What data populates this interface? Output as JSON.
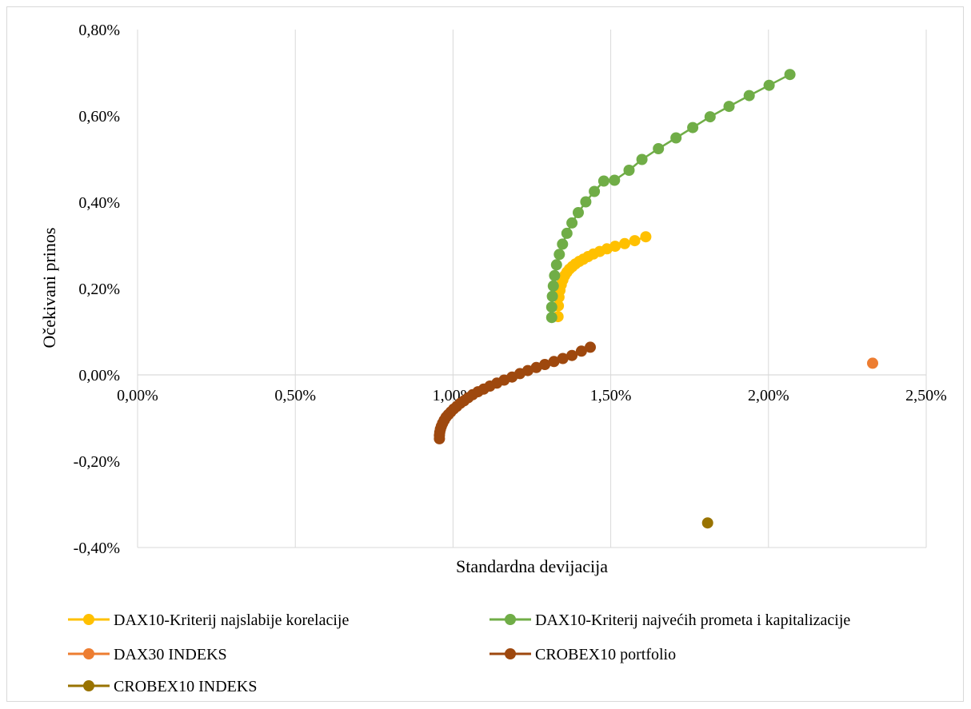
{
  "chart_data": {
    "type": "scatter",
    "title": "",
    "xlabel": "Standardna devijacija",
    "ylabel": "Očekivani prinos",
    "xlim": [
      0,
      0.025
    ],
    "ylim": [
      -0.004,
      0.008
    ],
    "grid": "vertical",
    "legend_position": "bottom",
    "x_ticks": [
      {
        "value": 0.0,
        "label": "0,00%"
      },
      {
        "value": 0.005,
        "label": "0,50%"
      },
      {
        "value": 0.01,
        "label": "1,00%"
      },
      {
        "value": 0.015,
        "label": "1,50%"
      },
      {
        "value": 0.02,
        "label": "2,00%"
      },
      {
        "value": 0.025,
        "label": "2,50%"
      }
    ],
    "y_ticks": [
      {
        "value": 0.008,
        "label": "0,80%"
      },
      {
        "value": 0.006,
        "label": "0,60%"
      },
      {
        "value": 0.004,
        "label": "0,40%"
      },
      {
        "value": 0.002,
        "label": "0,20%"
      },
      {
        "value": 0.0,
        "label": "0,00%"
      },
      {
        "value": -0.002,
        "label": "-0,20%"
      },
      {
        "value": -0.004,
        "label": "-0,40%"
      }
    ],
    "series": [
      {
        "name": "DAX10-Kriterij najslabije korelacije",
        "color": "#FFC000",
        "line": true,
        "points": [
          [
            0.01333,
            0.00135
          ],
          [
            0.01334,
            0.0016
          ],
          [
            0.01336,
            0.0018
          ],
          [
            0.01339,
            0.00196
          ],
          [
            0.01343,
            0.00209
          ],
          [
            0.01348,
            0.0022
          ],
          [
            0.01354,
            0.0023
          ],
          [
            0.01361,
            0.00238
          ],
          [
            0.01369,
            0.00245
          ],
          [
            0.01378,
            0.00251
          ],
          [
            0.01388,
            0.00257
          ],
          [
            0.014,
            0.00263
          ],
          [
            0.01413,
            0.00268
          ],
          [
            0.01428,
            0.00274
          ],
          [
            0.01445,
            0.0028
          ],
          [
            0.01465,
            0.00286
          ],
          [
            0.01488,
            0.00292
          ],
          [
            0.01514,
            0.00298
          ],
          [
            0.01544,
            0.00304
          ],
          [
            0.01576,
            0.00311
          ],
          [
            0.01611,
            0.0032
          ]
        ]
      },
      {
        "name": "DAX10-Kriterij najvećih prometa i kapitalizacije",
        "color": "#70AD47",
        "line": true,
        "points": [
          [
            0.01313,
            0.00133
          ],
          [
            0.01313,
            0.00157
          ],
          [
            0.01315,
            0.00182
          ],
          [
            0.01318,
            0.00206
          ],
          [
            0.01322,
            0.0023
          ],
          [
            0.01328,
            0.00255
          ],
          [
            0.01337,
            0.00279
          ],
          [
            0.01347,
            0.00303
          ],
          [
            0.01361,
            0.00328
          ],
          [
            0.01377,
            0.00352
          ],
          [
            0.01397,
            0.00376
          ],
          [
            0.01421,
            0.00401
          ],
          [
            0.01448,
            0.00425
          ],
          [
            0.01478,
            0.00449
          ],
          [
            0.01512,
            0.00451
          ],
          [
            0.01558,
            0.00474
          ],
          [
            0.01599,
            0.00499
          ],
          [
            0.01651,
            0.00524
          ],
          [
            0.01707,
            0.00549
          ],
          [
            0.0176,
            0.00573
          ],
          [
            0.01815,
            0.00598
          ],
          [
            0.01875,
            0.00622
          ],
          [
            0.01939,
            0.00647
          ],
          [
            0.02002,
            0.00671
          ],
          [
            0.02068,
            0.00696
          ]
        ]
      },
      {
        "name": "DAX30 INDEKS",
        "color": "#ED7D31",
        "line": false,
        "points": [
          [
            0.0233,
            0.00027
          ]
        ]
      },
      {
        "name": "CROBEX10 portfolio",
        "color": "#9E480E",
        "line": true,
        "points": [
          [
            0.00957,
            -0.00148
          ],
          [
            0.00957,
            -0.0014
          ],
          [
            0.00958,
            -0.00133
          ],
          [
            0.0096,
            -0.00126
          ],
          [
            0.00963,
            -0.00119
          ],
          [
            0.00967,
            -0.00112
          ],
          [
            0.00972,
            -0.00105
          ],
          [
            0.00978,
            -0.00098
          ],
          [
            0.00985,
            -0.00092
          ],
          [
            0.00993,
            -0.00086
          ],
          [
            0.01002,
            -0.00079
          ],
          [
            0.01012,
            -0.00073
          ],
          [
            0.01023,
            -0.00066
          ],
          [
            0.01035,
            -0.0006
          ],
          [
            0.01048,
            -0.00053
          ],
          [
            0.01062,
            -0.00046
          ],
          [
            0.01079,
            -0.00039
          ],
          [
            0.01097,
            -0.00033
          ],
          [
            0.01117,
            -0.00026
          ],
          [
            0.01139,
            -0.00019
          ],
          [
            0.01162,
            -0.00012
          ],
          [
            0.01187,
            -5e-05
          ],
          [
            0.01212,
            3e-05
          ],
          [
            0.01237,
            0.0001
          ],
          [
            0.01264,
            0.00017
          ],
          [
            0.01291,
            0.00024
          ],
          [
            0.0132,
            0.00031
          ],
          [
            0.01348,
            0.00038
          ],
          [
            0.01377,
            0.00045
          ],
          [
            0.01407,
            0.00055
          ],
          [
            0.01435,
            0.00064
          ]
        ]
      },
      {
        "name": "CROBEX10 INDEKS",
        "color": "#997300",
        "line": false,
        "points": [
          [
            0.01807,
            -0.00343
          ]
        ]
      }
    ]
  }
}
